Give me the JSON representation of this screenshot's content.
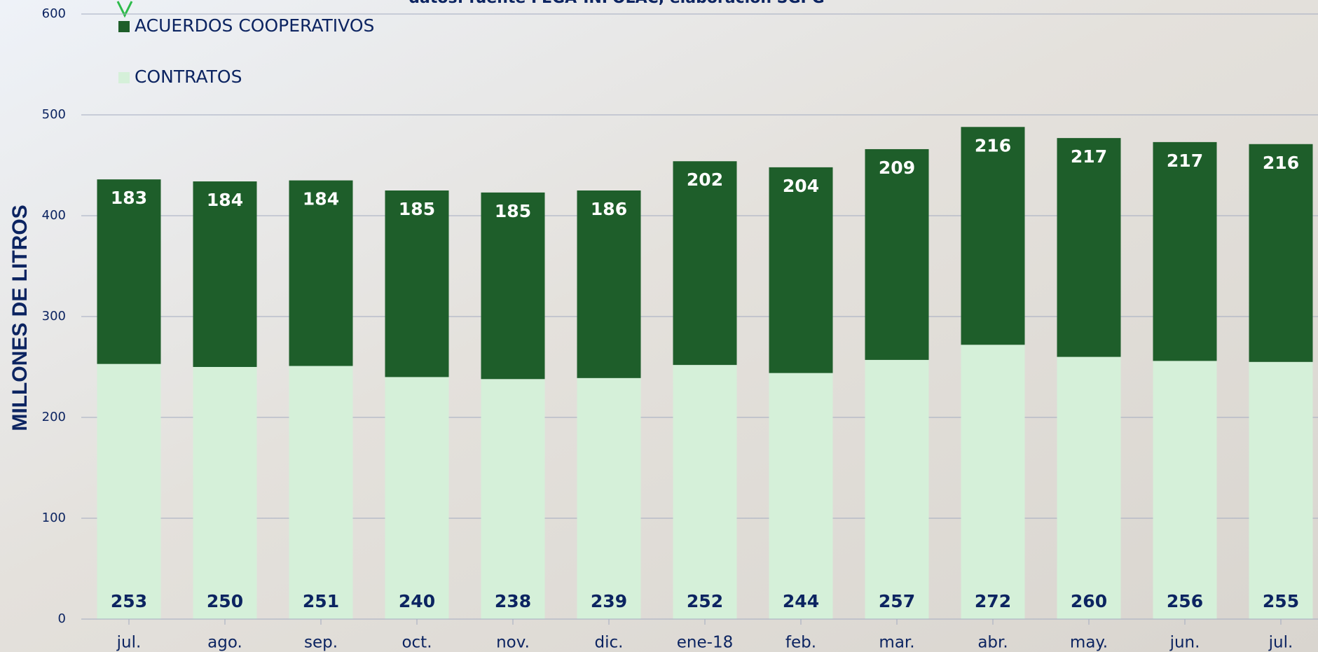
{
  "chart_data": {
    "type": "bar",
    "stacked": true,
    "subtitle": "datos: fuente FEGA-INFOLAC, elaboración SGPG",
    "y_label": "MILLONES DE LITROS",
    "categories": [
      "jul.",
      "ago.",
      "sep.",
      "oct.",
      "nov.",
      "dic.",
      "ene-18",
      "feb.",
      "mar.",
      "abr.",
      "may.",
      "jun.",
      "jul."
    ],
    "series": [
      {
        "name": "CONTRATOS",
        "color": "#d5f0d9",
        "values": [
          253,
          250,
          251,
          240,
          238,
          239,
          252,
          244,
          257,
          272,
          260,
          256,
          255
        ]
      },
      {
        "name": "ACUERDOS COOPERATIVOS",
        "color": "#1e5e2a",
        "values": [
          183,
          184,
          184,
          185,
          185,
          186,
          202,
          204,
          209,
          216,
          217,
          217,
          216
        ]
      }
    ],
    "ylim": [
      0,
      600
    ],
    "yticks": [
      0,
      100,
      200,
      300,
      400,
      500,
      600
    ],
    "grid": true,
    "legend": "top-left"
  }
}
